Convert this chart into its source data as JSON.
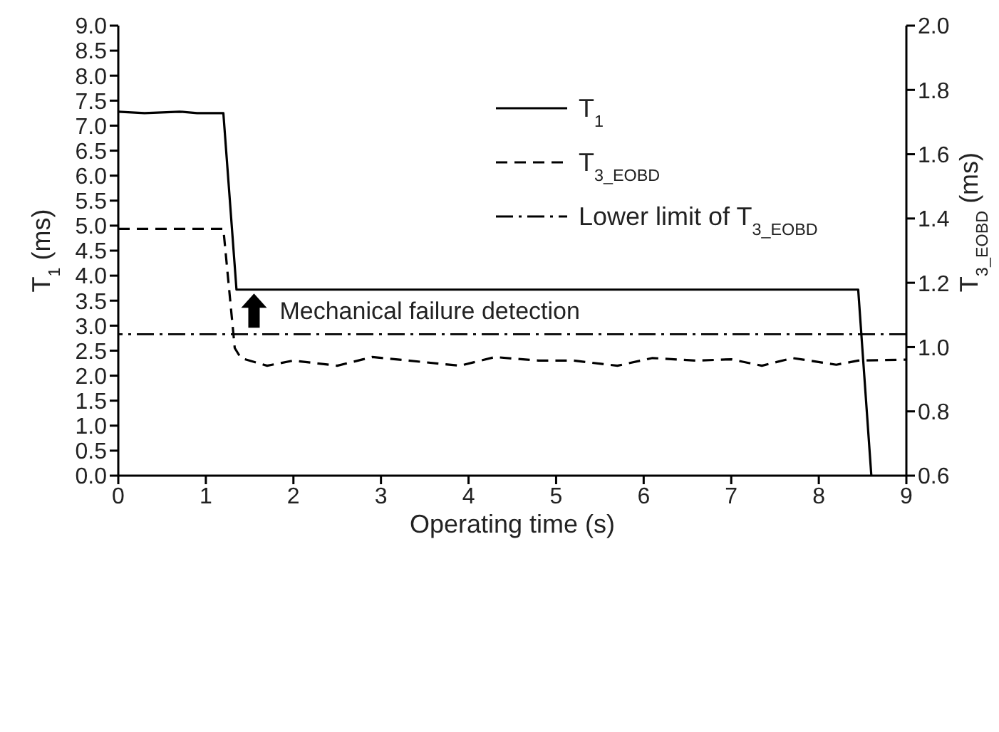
{
  "chart_data": {
    "type": "line",
    "xlabel": "Operating time (s)",
    "ylabel": "T$_{1}$ (ms)",
    "y2label": "T$_{3_EOBD}$ (ms)",
    "xlim": [
      0,
      9
    ],
    "xticks": [
      0,
      1,
      2,
      3,
      4,
      5,
      6,
      7,
      8,
      9
    ],
    "ylim": [
      0,
      9
    ],
    "yticks": [
      {
        "value": 0,
        "label": "0.0"
      },
      0.5,
      {
        "value": 1,
        "label": "1.0"
      },
      1.5,
      {
        "value": 2,
        "label": "2.0"
      },
      2.5,
      {
        "value": 3,
        "label": "3.0"
      },
      3.5,
      {
        "value": 4,
        "label": "4.0"
      },
      4.5,
      {
        "value": 5,
        "label": "5.0"
      },
      5.5,
      {
        "value": 6,
        "label": "6.0"
      },
      6.5,
      {
        "value": 7,
        "label": "7.0"
      },
      7.5,
      {
        "value": 8,
        "label": "8.0"
      },
      8.5,
      {
        "value": 9,
        "label": "9.0"
      }
    ],
    "y2lim": [
      0.6,
      2.0
    ],
    "y2ticks": [
      0.6,
      0.8,
      {
        "value": 1,
        "label": "1.0"
      },
      1.2,
      1.4,
      1.6,
      1.8,
      {
        "value": 2,
        "label": "2.0"
      }
    ],
    "series": [
      {
        "name": "T$_{1}$",
        "color": "#000000",
        "line_style": "solid",
        "x": [
          0,
          0.3,
          0.7,
          0.9,
          1.2,
          1.35,
          8.45,
          8.6
        ],
        "values": [
          7.28,
          7.25,
          7.28,
          7.25,
          7.25,
          3.72,
          3.72,
          0
        ]
      },
      {
        "name": "T$_{3_EOBD}$",
        "color": "#000000",
        "line_style": "dashed",
        "axis": "y2",
        "x": [
          0,
          1.2,
          1.33,
          1.4,
          1.7,
          2.0,
          2.5,
          2.9,
          3.5,
          3.9,
          4.3,
          4.8,
          5.2,
          5.7,
          6.1,
          6.6,
          7.0,
          7.35,
          7.7,
          8.2,
          8.45,
          9
        ],
        "values": [
          1.368,
          1.368,
          0.997,
          0.966,
          0.942,
          0.958,
          0.942,
          0.969,
          0.953,
          0.942,
          0.969,
          0.958,
          0.958,
          0.942,
          0.966,
          0.958,
          0.962,
          0.942,
          0.966,
          0.945,
          0.958,
          0.961
        ]
      }
    ],
    "ref_lines": [
      {
        "axis": "y2",
        "value": 1.04,
        "label": "Lower limit of T$_{3_EOBD}$",
        "color": "#000000",
        "line_style": "dashdot"
      }
    ],
    "annotations": [
      {
        "text": "Mechanical failure detection",
        "x": 1.55,
        "y": 3.3
      }
    ],
    "legend": "top right"
  }
}
